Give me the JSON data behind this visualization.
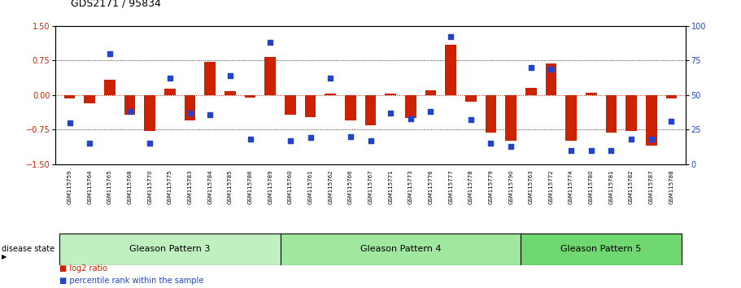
{
  "title": "GDS2171 / 95834",
  "samples": [
    "GSM115759",
    "GSM115764",
    "GSM115765",
    "GSM115768",
    "GSM115770",
    "GSM115775",
    "GSM115783",
    "GSM115784",
    "GSM115785",
    "GSM115786",
    "GSM115789",
    "GSM115760",
    "GSM115761",
    "GSM115762",
    "GSM115766",
    "GSM115767",
    "GSM115771",
    "GSM115773",
    "GSM115776",
    "GSM115777",
    "GSM115778",
    "GSM115779",
    "GSM115790",
    "GSM115763",
    "GSM115772",
    "GSM115774",
    "GSM115780",
    "GSM115781",
    "GSM115782",
    "GSM115787",
    "GSM115788"
  ],
  "log2_ratio": [
    -0.07,
    -0.18,
    0.33,
    -0.42,
    -0.78,
    0.14,
    -0.55,
    0.72,
    0.08,
    -0.05,
    0.83,
    -0.42,
    -0.48,
    0.04,
    -0.55,
    -0.65,
    0.03,
    -0.5,
    0.1,
    1.1,
    -0.14,
    -0.82,
    -1.0,
    0.15,
    0.68,
    -1.0,
    0.05,
    -0.82,
    -0.78,
    -1.1,
    -0.07
  ],
  "percentile": [
    30,
    15,
    80,
    38,
    15,
    62,
    37,
    36,
    64,
    18,
    88,
    17,
    19,
    62,
    20,
    17,
    37,
    33,
    38,
    92,
    32,
    15,
    13,
    70,
    69,
    10,
    10,
    10,
    18,
    18,
    31
  ],
  "groups": [
    {
      "label": "Gleason Pattern 3",
      "start": 0,
      "end": 10
    },
    {
      "label": "Gleason Pattern 4",
      "start": 11,
      "end": 22
    },
    {
      "label": "Gleason Pattern 5",
      "start": 23,
      "end": 30
    }
  ],
  "bar_color": "#cc2200",
  "dot_color": "#2244cc",
  "bg_color": "#ffffff",
  "group_colors": [
    "#c0efc0",
    "#a0e8a0",
    "#70d870"
  ],
  "ylim_left": [
    -1.5,
    1.5
  ],
  "ylim_right": [
    0,
    100
  ],
  "yticks_left": [
    -1.5,
    -0.75,
    0,
    0.75,
    1.5
  ],
  "yticks_right": [
    0,
    25,
    50,
    75,
    100
  ],
  "hline_dotted": [
    -0.75,
    0.75
  ],
  "title_fontsize": 9,
  "tick_fontsize": 5,
  "label_fontsize": 7,
  "disease_state_label": "disease state"
}
